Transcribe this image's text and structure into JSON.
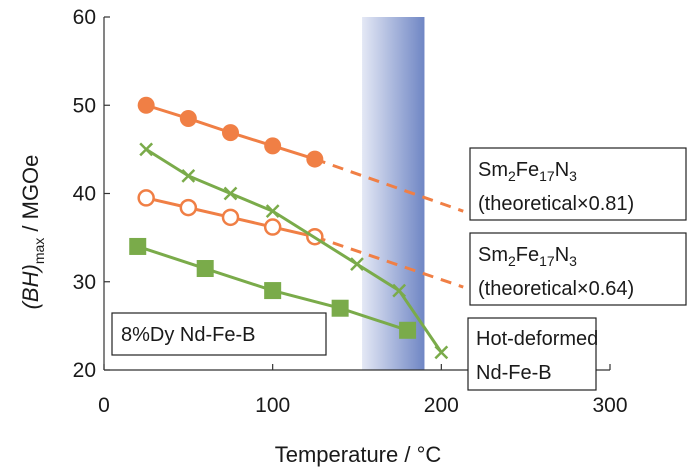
{
  "chart_data": {
    "type": "line",
    "xlabel": "Temperature / ",
    "xlabel_unit": "°C",
    "ylabel_main": "(BH)",
    "ylabel_sub": "max",
    "ylabel_rest": " / MGOe",
    "xlim": [
      0,
      300
    ],
    "ylim": [
      20,
      60
    ],
    "x_ticks": [
      0,
      100,
      200,
      300
    ],
    "y_ticks": [
      20,
      30,
      40,
      50,
      60
    ],
    "highlight_band": {
      "x_from": 153,
      "x_to": 190
    },
    "series": [
      {
        "key": "sm_081",
        "marker": "filled-circle",
        "color": "#f07f45",
        "points": [
          [
            25,
            50.0
          ],
          [
            50,
            48.5
          ],
          [
            75,
            46.9
          ],
          [
            100,
            45.4
          ],
          [
            125,
            43.9
          ]
        ],
        "extrapolation": [
          [
            125,
            43.9
          ],
          [
            213,
            38.0
          ]
        ]
      },
      {
        "key": "sm_064",
        "marker": "open-circle",
        "color": "#f07f45",
        "points": [
          [
            25,
            39.5
          ],
          [
            50,
            38.4
          ],
          [
            75,
            37.3
          ],
          [
            100,
            36.2
          ],
          [
            125,
            35.1
          ]
        ],
        "extrapolation": [
          [
            125,
            35.1
          ],
          [
            213,
            29.4
          ]
        ]
      },
      {
        "key": "hot_deformed",
        "marker": "cross",
        "color": "#7aab4a",
        "points": [
          [
            25,
            45.0
          ],
          [
            50,
            42.0
          ],
          [
            75,
            40.0
          ],
          [
            100,
            38.0
          ],
          [
            150,
            32.0
          ],
          [
            175,
            29.0
          ],
          [
            200,
            22.0
          ]
        ]
      },
      {
        "key": "dy_nd",
        "marker": "filled-square",
        "color": "#7aab4a",
        "points": [
          [
            20,
            34.0
          ],
          [
            60,
            31.5
          ],
          [
            100,
            29.0
          ],
          [
            140,
            27.0
          ],
          [
            180,
            24.5
          ]
        ]
      }
    ],
    "annotations": [
      {
        "key": "sm_081",
        "line1_base": "Sm",
        "line1_parts": [
          "2",
          "Fe",
          "17",
          "N",
          "3"
        ],
        "line2": "(theoretical×0.81)"
      },
      {
        "key": "sm_064",
        "line1_base": "Sm",
        "line1_parts": [
          "2",
          "Fe",
          "17",
          "N",
          "3"
        ],
        "line2": "(theoretical×0.64)"
      },
      {
        "key": "hot_deformed",
        "line1": "Hot-deformed",
        "line2": "Nd-Fe-B"
      },
      {
        "key": "dy_nd",
        "line1": "8%Dy Nd-Fe-B"
      }
    ]
  }
}
